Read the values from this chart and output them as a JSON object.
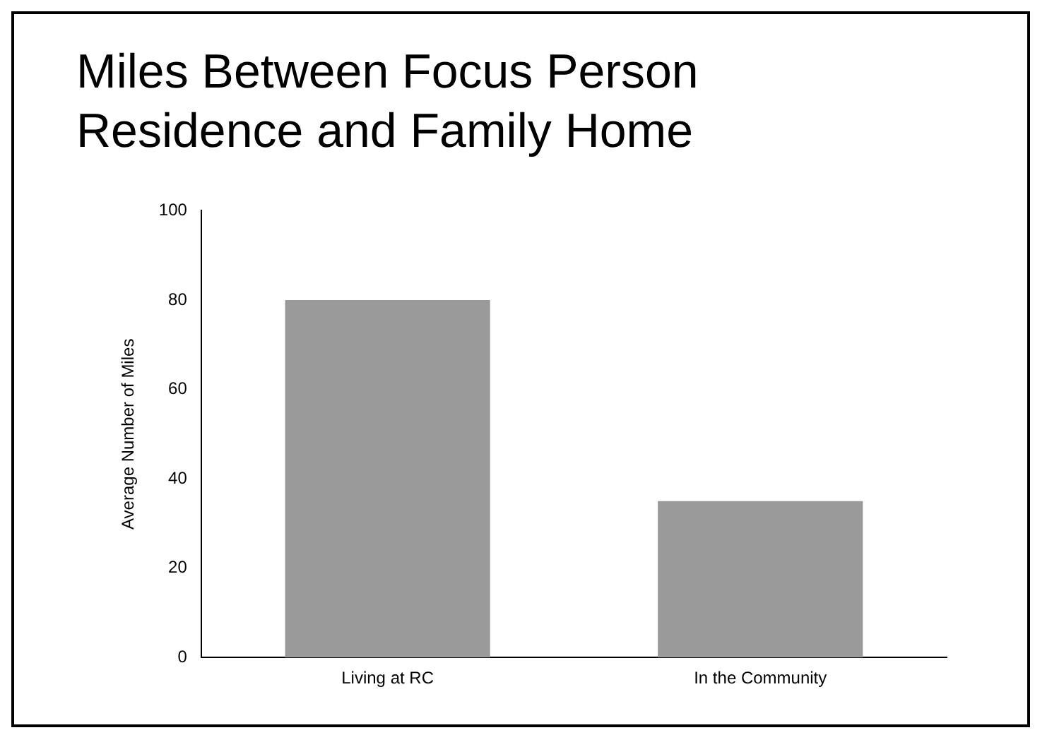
{
  "chart_data": {
    "type": "bar",
    "title": "Miles Between Focus Person Residence and Family Home",
    "ylabel": "Average Number of Miles",
    "categories": [
      "Living at RC",
      "In the Community"
    ],
    "values": [
      80,
      35
    ],
    "color": "#9a9a9a",
    "ylim": [
      0,
      100
    ],
    "yticks": [
      0,
      20,
      40,
      60,
      80,
      100
    ],
    "grid": false,
    "legend": false
  }
}
